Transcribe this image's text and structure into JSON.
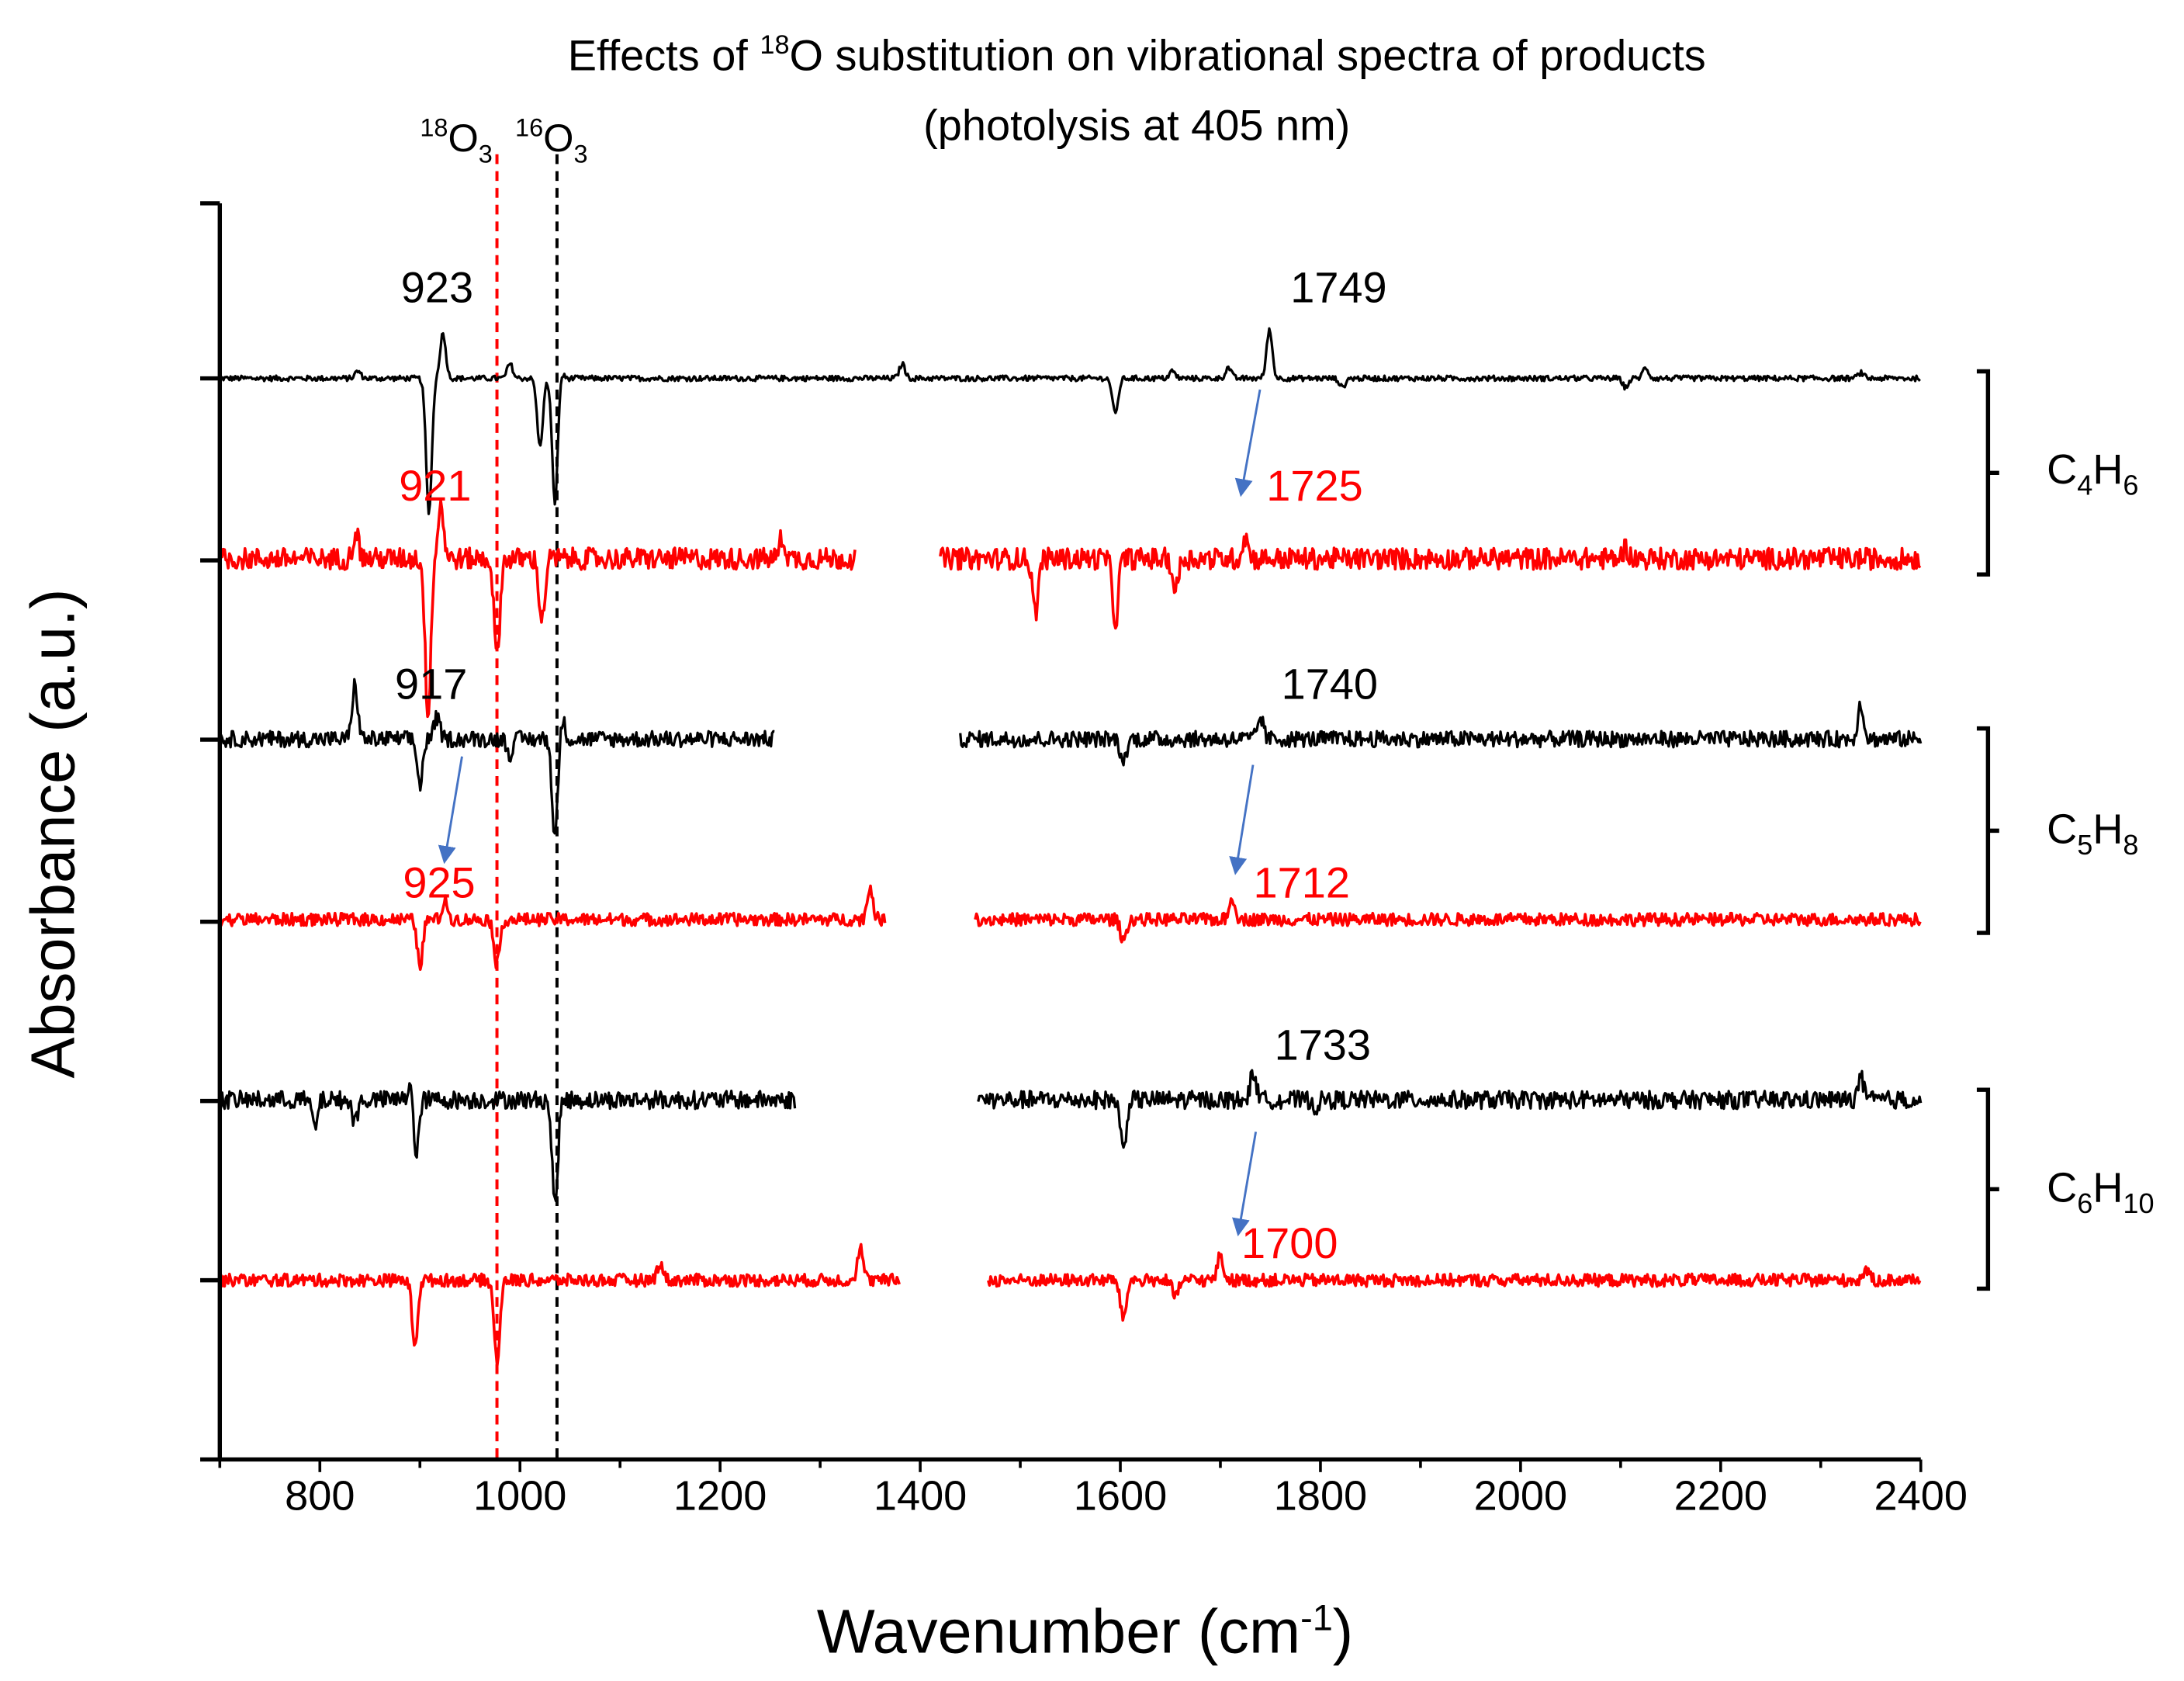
{
  "chart_data": {
    "type": "line",
    "title": "Effects of 18O substitution on vibrational spectra of products",
    "title_parts": {
      "prefix": "Effects of ",
      "sup": "18",
      "suffix": "O substitution on vibrational spectra of products"
    },
    "subtitle": "(photolysis at 405 nm)",
    "xlabel": "Wavenumber (cm-1)",
    "xlabel_parts": {
      "main": "Wavenumber (cm",
      "sup": "-1",
      "end": ")"
    },
    "ylabel": "Absorbance (a.u.)",
    "xlim": [
      700,
      2400
    ],
    "xticks": [
      800,
      1000,
      1200,
      1400,
      1600,
      1800,
      2000,
      2200,
      2400
    ],
    "ylim": [
      -6.9,
      0
    ],
    "grid": false,
    "colors": {
      "16O3": "#000000",
      "18O3": "#ff0000",
      "arrow": "#4472c4"
    },
    "reference_lines": [
      {
        "label_sup": "18",
        "label_main": "O",
        "label_sub": "3",
        "x": 977,
        "color": "#ff0000",
        "style": "dashed"
      },
      {
        "label_sup": "16",
        "label_main": "O",
        "label_sub": "3",
        "x": 1037,
        "color": "#000000",
        "style": "dashed"
      }
    ],
    "series": [
      {
        "group": "C4H6",
        "isotope": "16O3",
        "color": "#000000",
        "offset": -1.0,
        "noise": 0.015,
        "ranges": [
          [
            700,
            2400
          ]
        ],
        "peaks": [
          [
            923,
            0.25
          ],
          [
            909,
            -0.75
          ],
          [
            990,
            0.08
          ],
          [
            1020,
            -0.38
          ],
          [
            1035,
            -0.7
          ],
          [
            1040,
            0.05
          ],
          [
            838,
            0.04
          ],
          [
            1382,
            0.08
          ],
          [
            1595,
            -0.2
          ],
          [
            1652,
            0.04
          ],
          [
            1708,
            0.06
          ],
          [
            1749,
            0.27
          ],
          [
            1822,
            -0.05
          ],
          [
            2105,
            -0.05
          ],
          [
            2125,
            0.06
          ],
          [
            2340,
            0.03
          ]
        ]
      },
      {
        "group": "C4H6",
        "isotope": "18O3",
        "color": "#ff0000",
        "offset": -2.0,
        "noise": 0.06,
        "ranges": [
          [
            700,
            1335
          ],
          [
            1420,
            2400
          ]
        ],
        "peaks": [
          [
            921,
            0.3
          ],
          [
            908,
            -0.85
          ],
          [
            977,
            -0.55
          ],
          [
            1022,
            -0.35
          ],
          [
            836,
            0.15
          ],
          [
            1262,
            0.12
          ],
          [
            1515,
            -0.3
          ],
          [
            1595,
            -0.35
          ],
          [
            1655,
            -0.18
          ],
          [
            1725,
            0.12
          ],
          [
            2105,
            0.06
          ]
        ]
      },
      {
        "group": "C5H8",
        "isotope": "16O3",
        "color": "#000000",
        "offset": -3.0,
        "noise": 0.045,
        "ranges": [
          [
            700,
            1255
          ],
          [
            1440,
            2400
          ]
        ],
        "peaks": [
          [
            917,
            0.12
          ],
          [
            900,
            -0.25
          ],
          [
            835,
            0.3
          ],
          [
            990,
            -0.08
          ],
          [
            1035,
            -0.55
          ],
          [
            1042,
            0.12
          ],
          [
            1603,
            -0.13
          ],
          [
            1740,
            0.12
          ],
          [
            2340,
            0.2
          ]
        ]
      },
      {
        "group": "C5H8",
        "isotope": "18O3",
        "color": "#ff0000",
        "offset": -4.0,
        "noise": 0.035,
        "ranges": [
          [
            700,
            1365
          ],
          [
            1455,
            2400
          ]
        ],
        "peaks": [
          [
            900,
            -0.25
          ],
          [
            925,
            0.1
          ],
          [
            977,
            -0.25
          ],
          [
            1350,
            0.18
          ],
          [
            1603,
            -0.12
          ],
          [
            1712,
            0.12
          ]
        ]
      },
      {
        "group": "C6H10",
        "isotope": "16O3",
        "color": "#000000",
        "offset": -5.0,
        "noise": 0.05,
        "ranges": [
          [
            700,
            1275
          ],
          [
            1458,
            2400
          ]
        ],
        "peaks": [
          [
            893,
            0.4
          ],
          [
            895,
            -0.6
          ],
          [
            795,
            -0.15
          ],
          [
            835,
            -0.12
          ],
          [
            1035,
            -0.58
          ],
          [
            1603,
            -0.28
          ],
          [
            1733,
            0.16
          ],
          [
            1795,
            -0.04
          ],
          [
            2340,
            0.12
          ]
        ]
      },
      {
        "group": "C6H10",
        "isotope": "18O3",
        "color": "#ff0000",
        "offset": -6.0,
        "noise": 0.035,
        "ranges": [
          [
            700,
            1380
          ],
          [
            1468,
            2400
          ]
        ],
        "peaks": [
          [
            895,
            -0.35
          ],
          [
            977,
            -0.45
          ],
          [
            1140,
            0.1
          ],
          [
            1340,
            0.18
          ],
          [
            1603,
            -0.22
          ],
          [
            1655,
            -0.1
          ],
          [
            1700,
            0.14
          ],
          [
            2345,
            0.06
          ]
        ]
      }
    ],
    "annotations": [
      {
        "text": "923",
        "color": "#000000",
        "x": 923,
        "y": -0.5
      },
      {
        "text": "921",
        "color": "#ff0000",
        "x": 921,
        "y": -1.6
      },
      {
        "text": "917",
        "color": "#000000",
        "x": 917,
        "y": -2.7
      },
      {
        "text": "925",
        "color": "#ff0000",
        "x": 925,
        "y": -3.8
      },
      {
        "text": "1749",
        "color": "#000000",
        "x": 1749,
        "y": -0.5
      },
      {
        "text": "1725",
        "color": "#ff0000",
        "x": 1725,
        "y": -1.6
      },
      {
        "text": "1740",
        "color": "#000000",
        "x": 1740,
        "y": -2.7
      },
      {
        "text": "1712",
        "color": "#ff0000",
        "x": 1712,
        "y": -3.8
      },
      {
        "text": "1733",
        "color": "#000000",
        "x": 1733,
        "y": -4.7
      },
      {
        "text": "1700",
        "color": "#ff0000",
        "x": 1700,
        "y": -5.8
      }
    ],
    "shift_arrows": [
      {
        "from": 1749,
        "to": 1725
      },
      {
        "from": 917,
        "to": 925
      },
      {
        "from": 1740,
        "to": 1712
      },
      {
        "from": 1733,
        "to": 1700
      }
    ],
    "group_labels": [
      {
        "main": "C",
        "n1": "4",
        "h": "H",
        "n2": "6"
      },
      {
        "main": "C",
        "n1": "5",
        "h": "H",
        "n2": "8"
      },
      {
        "main": "C",
        "n1": "6",
        "h": "H",
        "n2": "10"
      }
    ]
  }
}
